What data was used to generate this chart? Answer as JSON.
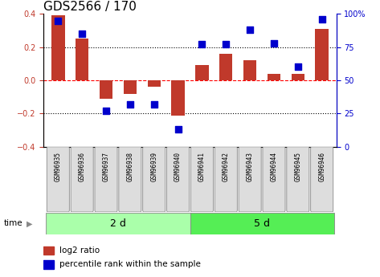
{
  "title": "GDS2566 / 170",
  "samples": [
    "GSM96935",
    "GSM96936",
    "GSM96937",
    "GSM96938",
    "GSM96939",
    "GSM96940",
    "GSM96941",
    "GSM96942",
    "GSM96943",
    "GSM96944",
    "GSM96945",
    "GSM96946"
  ],
  "log2_ratio": [
    0.39,
    0.25,
    -0.11,
    -0.08,
    -0.04,
    -0.21,
    0.09,
    0.16,
    0.12,
    0.04,
    0.04,
    0.31
  ],
  "percentile_rank": [
    95,
    85,
    27,
    32,
    32,
    13,
    77,
    77,
    88,
    78,
    60,
    96
  ],
  "groups": [
    {
      "label": "2 d",
      "start": 0,
      "end": 6
    },
    {
      "label": "5 d",
      "start": 6,
      "end": 12
    }
  ],
  "group_colors": [
    "#aaffaa",
    "#55ee55"
  ],
  "bar_color": "#C0392B",
  "dot_color": "#0000CC",
  "ylim_left": [
    -0.4,
    0.4
  ],
  "ylim_right": [
    0,
    100
  ],
  "yticks_left": [
    -0.4,
    -0.2,
    0.0,
    0.2,
    0.4
  ],
  "yticks_right": [
    0,
    25,
    50,
    75,
    100
  ],
  "ytick_labels_right": [
    "0",
    "25",
    "50",
    "75",
    "100%"
  ],
  "hlines": [
    0.2,
    0.0,
    -0.2
  ],
  "hline_styles": [
    "dotted",
    "dashed",
    "dotted"
  ],
  "hline_colors": [
    "black",
    "red",
    "black"
  ],
  "time_label": "time",
  "bar_width": 0.55,
  "dot_size": 28,
  "background_color": "#ffffff",
  "group_label_fontsize": 9,
  "tick_fontsize": 7,
  "title_fontsize": 11,
  "sample_fontsize": 5.5,
  "legend_fontsize": 7.5
}
